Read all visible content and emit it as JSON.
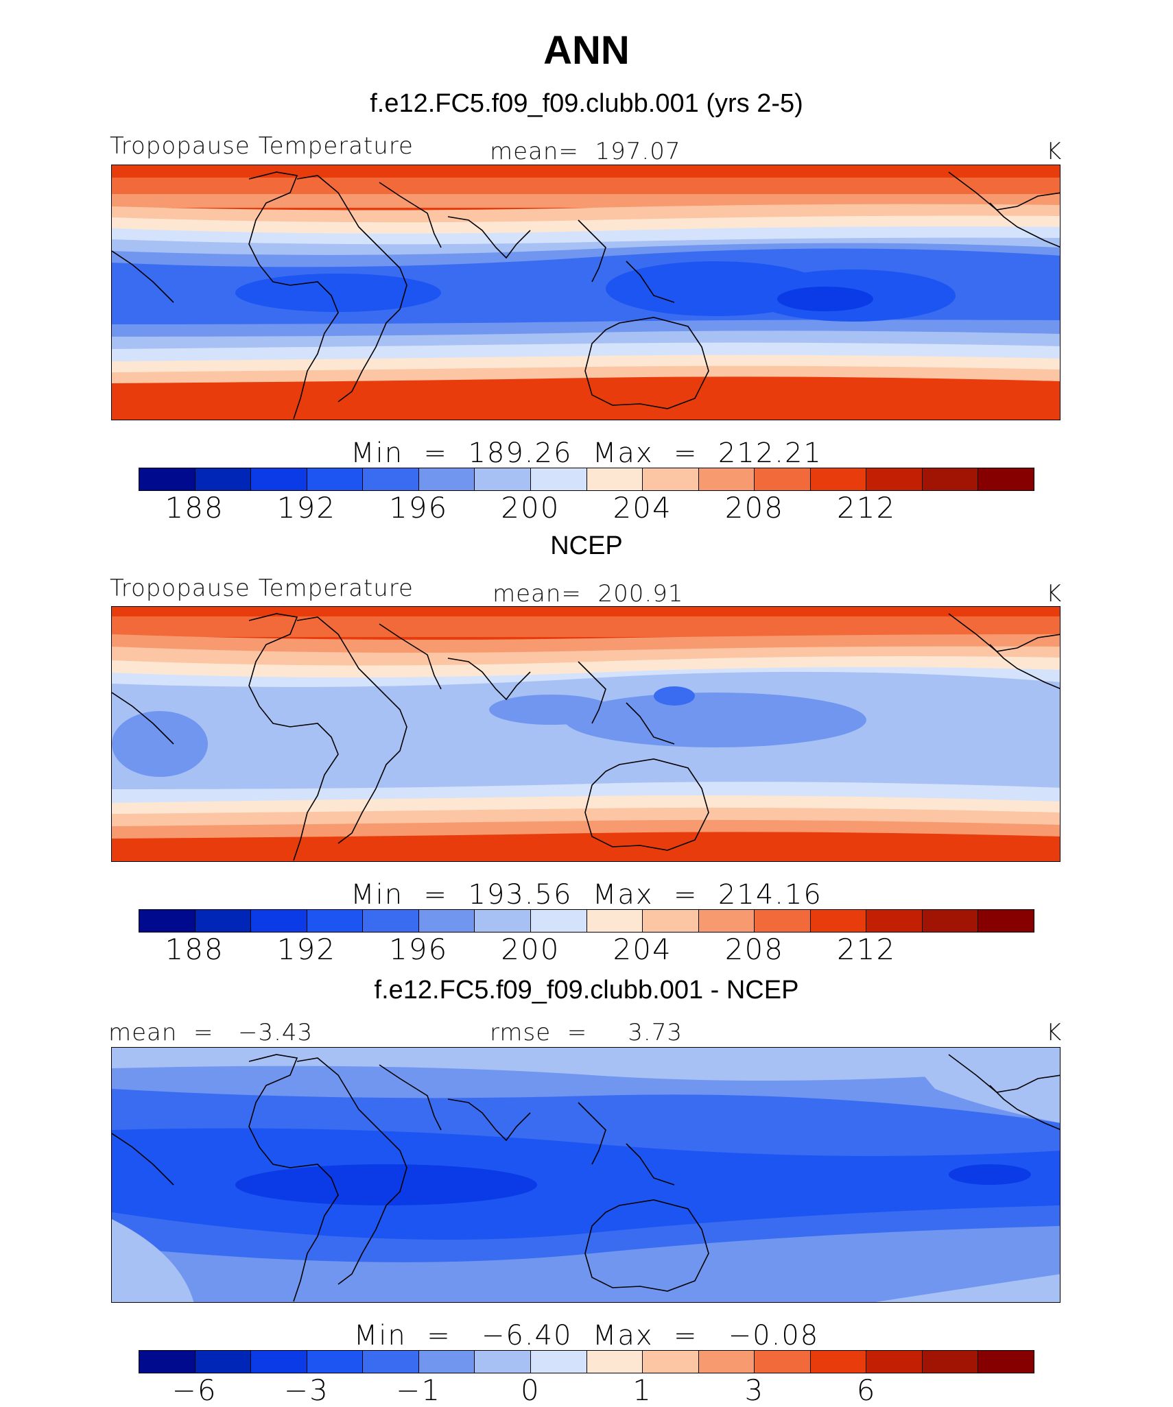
{
  "figure": {
    "season": "ANN"
  },
  "palette": [
    "#000a8f",
    "#0026b8",
    "#0a3be6",
    "#1c55f2",
    "#3a6cf2",
    "#7096f0",
    "#a8c1f5",
    "#d4e3fb",
    "#fde7d3",
    "#fcc5a3",
    "#f89a70",
    "#f36a3a",
    "#e83c0d",
    "#c31f02",
    "#a11303",
    "#860000"
  ],
  "panels": [
    {
      "title": "f.e12.FC5.f09_f09.clubb.001 (yrs 2-5)",
      "left_label": "Tropopause Temperature",
      "center_label": "mean=  197.07",
      "units": "K",
      "minmax": "Min  =  189.26  Max  =  212.21",
      "ticks": [
        "188",
        "192",
        "196",
        "200",
        "204",
        "208",
        "212"
      ]
    },
    {
      "title": "NCEP",
      "left_label": "Tropopause Temperature",
      "center_label": "mean=  200.91",
      "units": "K",
      "minmax": "Min  =  193.56  Max  =  214.16",
      "ticks": [
        "188",
        "192",
        "196",
        "200",
        "204",
        "208",
        "212"
      ]
    },
    {
      "title": "f.e12.FC5.f09_f09.clubb.001 - NCEP",
      "left_label": "mean  =   −3.43",
      "center_label": "rmse  =     3.73",
      "units": "K",
      "minmax": "Min  =   −6.40  Max  =   −0.08",
      "ticks": [
        "−6",
        "−3",
        "−1",
        "0",
        "1",
        "3",
        "6"
      ]
    }
  ]
}
